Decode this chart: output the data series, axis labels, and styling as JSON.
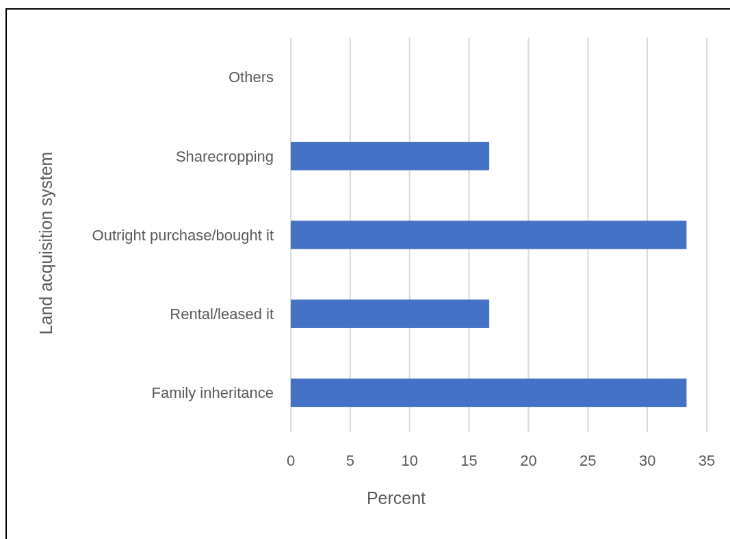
{
  "chart_data": {
    "type": "bar",
    "orientation": "horizontal",
    "xlabel": "Percent",
    "ylabel": "Land acquisition system",
    "categories": [
      "Others",
      "Sharecropping",
      "Outright purchase/bought it",
      "Rental/leased it",
      "Family inheritance"
    ],
    "values": [
      0,
      16.7,
      33.3,
      16.7,
      33.3
    ],
    "color": "#4472c4",
    "xlim": [
      0,
      35
    ],
    "xticks": [
      0,
      5,
      10,
      15,
      20,
      25,
      30,
      35
    ],
    "grid": "x"
  }
}
